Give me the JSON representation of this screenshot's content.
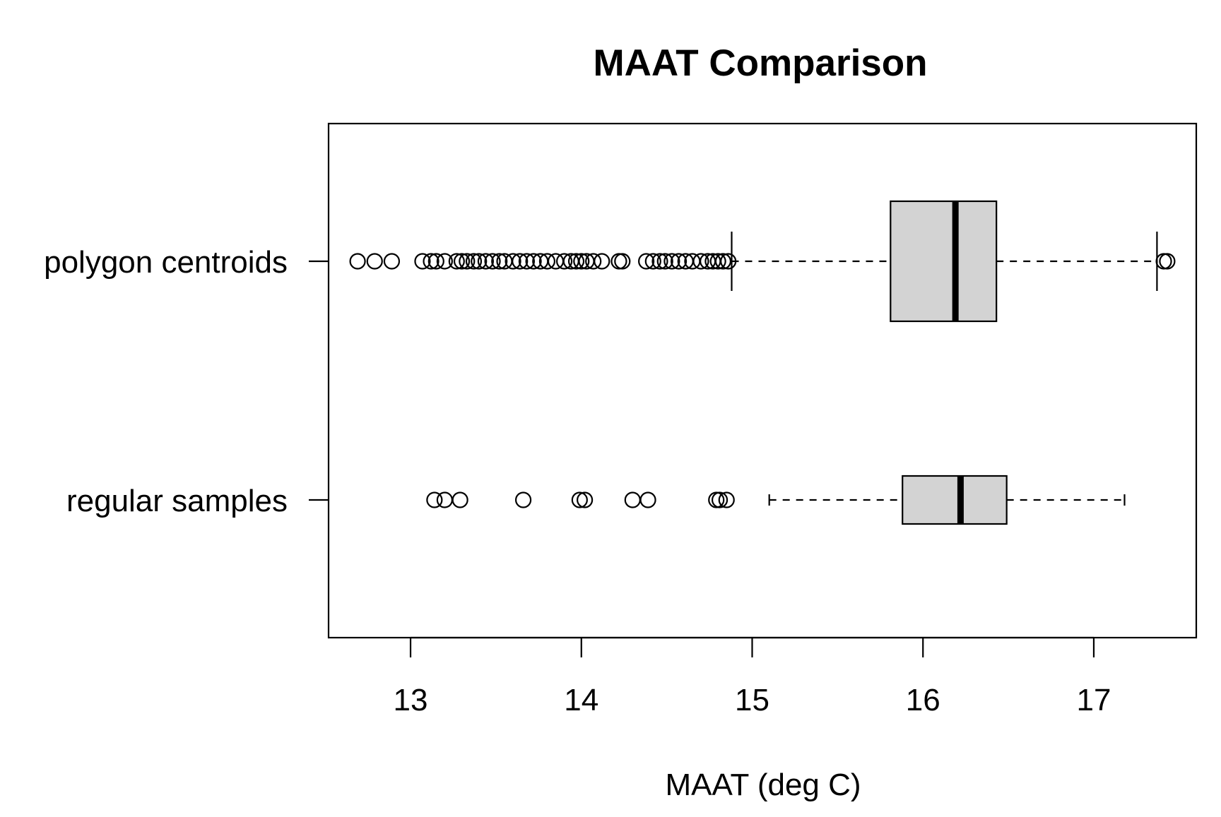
{
  "chart_data": {
    "type": "boxplot",
    "orientation": "horizontal",
    "title": "MAAT Comparison",
    "xlabel": "MAAT (deg C)",
    "ylabel": "",
    "xlim": [
      12.52,
      17.6
    ],
    "xticks": [
      13,
      14,
      15,
      16,
      17
    ],
    "grid": false,
    "box_fill": "#d3d3d3",
    "groups": [
      {
        "label": "polygon centroids",
        "whisker_low": 14.88,
        "q1": 15.81,
        "median": 16.19,
        "q3": 16.43,
        "whisker_high": 17.37,
        "outliers": [
          12.69,
          12.79,
          12.89,
          13.07,
          13.12,
          13.15,
          13.2,
          13.27,
          13.3,
          13.33,
          13.37,
          13.4,
          13.44,
          13.48,
          13.52,
          13.55,
          13.6,
          13.64,
          13.68,
          13.72,
          13.76,
          13.8,
          13.85,
          13.9,
          13.94,
          13.97,
          14.0,
          14.03,
          14.07,
          14.12,
          14.22,
          14.24,
          14.38,
          14.42,
          14.46,
          14.49,
          14.53,
          14.57,
          14.61,
          14.65,
          14.7,
          14.74,
          14.77,
          14.8,
          14.83,
          14.86,
          17.41,
          17.43
        ]
      },
      {
        "label": "regular samples",
        "whisker_low": 15.1,
        "q1": 15.88,
        "median": 16.22,
        "q3": 16.49,
        "whisker_high": 17.18,
        "outliers": [
          13.14,
          13.2,
          13.29,
          13.66,
          13.99,
          14.02,
          14.3,
          14.39,
          14.79,
          14.81,
          14.85
        ]
      }
    ]
  }
}
